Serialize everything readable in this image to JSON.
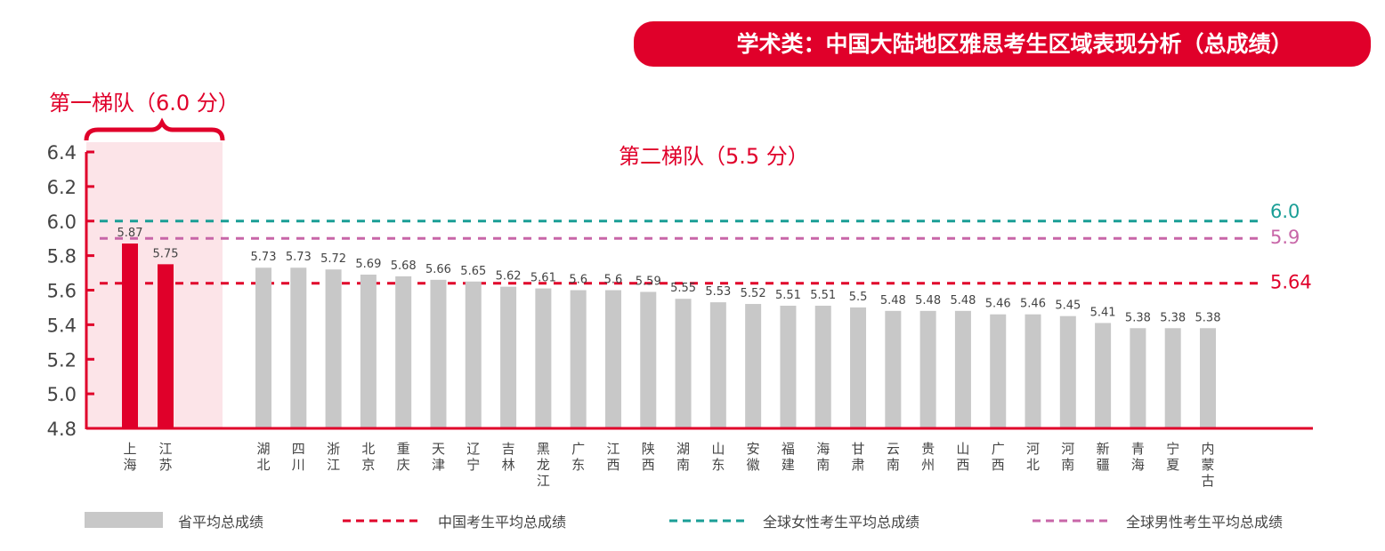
{
  "colors": {
    "accent": "#e0002a",
    "gray_bar": "#c8c8c8",
    "female": "#1a9e96",
    "male": "#c866a8",
    "tier1_bg": "#fce4e8",
    "text": "#444444"
  },
  "chart_data": {
    "type": "bar",
    "title": "学术类：中国大陆地区雅思考生区域表现分析（总成绩）",
    "tier1_label": "第一梯队（6.0 分）",
    "tier2_label": "第二梯队（5.5 分）",
    "ylim": [
      4.8,
      6.4
    ],
    "yticks": [
      "4.8",
      "5.0",
      "5.2",
      "5.4",
      "5.6",
      "5.8",
      "6.0",
      "6.2",
      "6.4"
    ],
    "categories": [
      "上海",
      "江苏",
      "湖北",
      "四川",
      "浙江",
      "北京",
      "重庆",
      "天津",
      "辽宁",
      "吉林",
      "黑龙江",
      "广东",
      "江西",
      "陕西",
      "湖南",
      "山东",
      "安徽",
      "福建",
      "海南",
      "甘肃",
      "云南",
      "贵州",
      "山西",
      "广西",
      "河北",
      "河南",
      "新疆",
      "青海",
      "宁夏",
      "内蒙古"
    ],
    "values": [
      5.87,
      5.75,
      5.73,
      5.73,
      5.72,
      5.69,
      5.68,
      5.66,
      5.65,
      5.62,
      5.61,
      5.6,
      5.6,
      5.59,
      5.55,
      5.53,
      5.52,
      5.51,
      5.51,
      5.5,
      5.48,
      5.48,
      5.48,
      5.46,
      5.46,
      5.45,
      5.41,
      5.38,
      5.38,
      5.38
    ],
    "value_labels": [
      "5.87",
      "5.75",
      "5.73",
      "5.73",
      "5.72",
      "5.69",
      "5.68",
      "5.66",
      "5.65",
      "5.62",
      "5.61",
      "5.6",
      "5.6",
      "5.59",
      "5.55",
      "5.53",
      "5.52",
      "5.51",
      "5.51",
      "5.5",
      "5.48",
      "5.48",
      "5.48",
      "5.46",
      "5.46",
      "5.45",
      "5.41",
      "5.38",
      "5.38",
      "5.38"
    ],
    "tier1_count": 2,
    "reference_lines": [
      {
        "name": "全球女性考生平均总成绩",
        "value": 6.0,
        "label": "6.0",
        "color": "#1a9e96"
      },
      {
        "name": "全球男性考生平均总成绩",
        "value": 5.9,
        "label": "5.9",
        "color": "#c866a8"
      },
      {
        "name": "中国考生平均总成绩",
        "value": 5.64,
        "label": "5.64",
        "color": "#e0002a"
      }
    ],
    "legend": {
      "bar": "省平均总成绩",
      "china": "中国考生平均总成绩",
      "female": "全球女性考生平均总成绩",
      "male": "全球男性考生平均总成绩"
    }
  }
}
